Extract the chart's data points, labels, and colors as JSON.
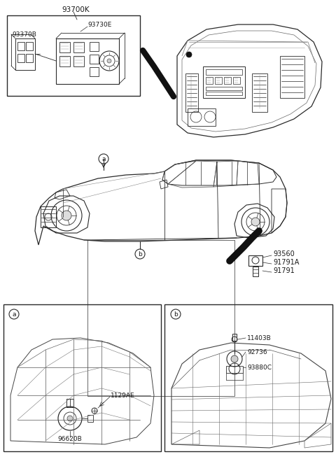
{
  "bg_color": "#ffffff",
  "line_color": "#2a2a2a",
  "label_color": "#1a1a1a",
  "top_box_label": "93700K",
  "top_box_sub1": "93370B",
  "top_box_sub2": "93730E",
  "right_labels": [
    "93560",
    "91791A",
    "91791"
  ],
  "bottom_a_labels": [
    "1129AE",
    "96620B"
  ],
  "bottom_b_labels": [
    "11403B",
    "92736",
    "93880C"
  ],
  "fig_width": 4.8,
  "fig_height": 6.56,
  "dpi": 100
}
